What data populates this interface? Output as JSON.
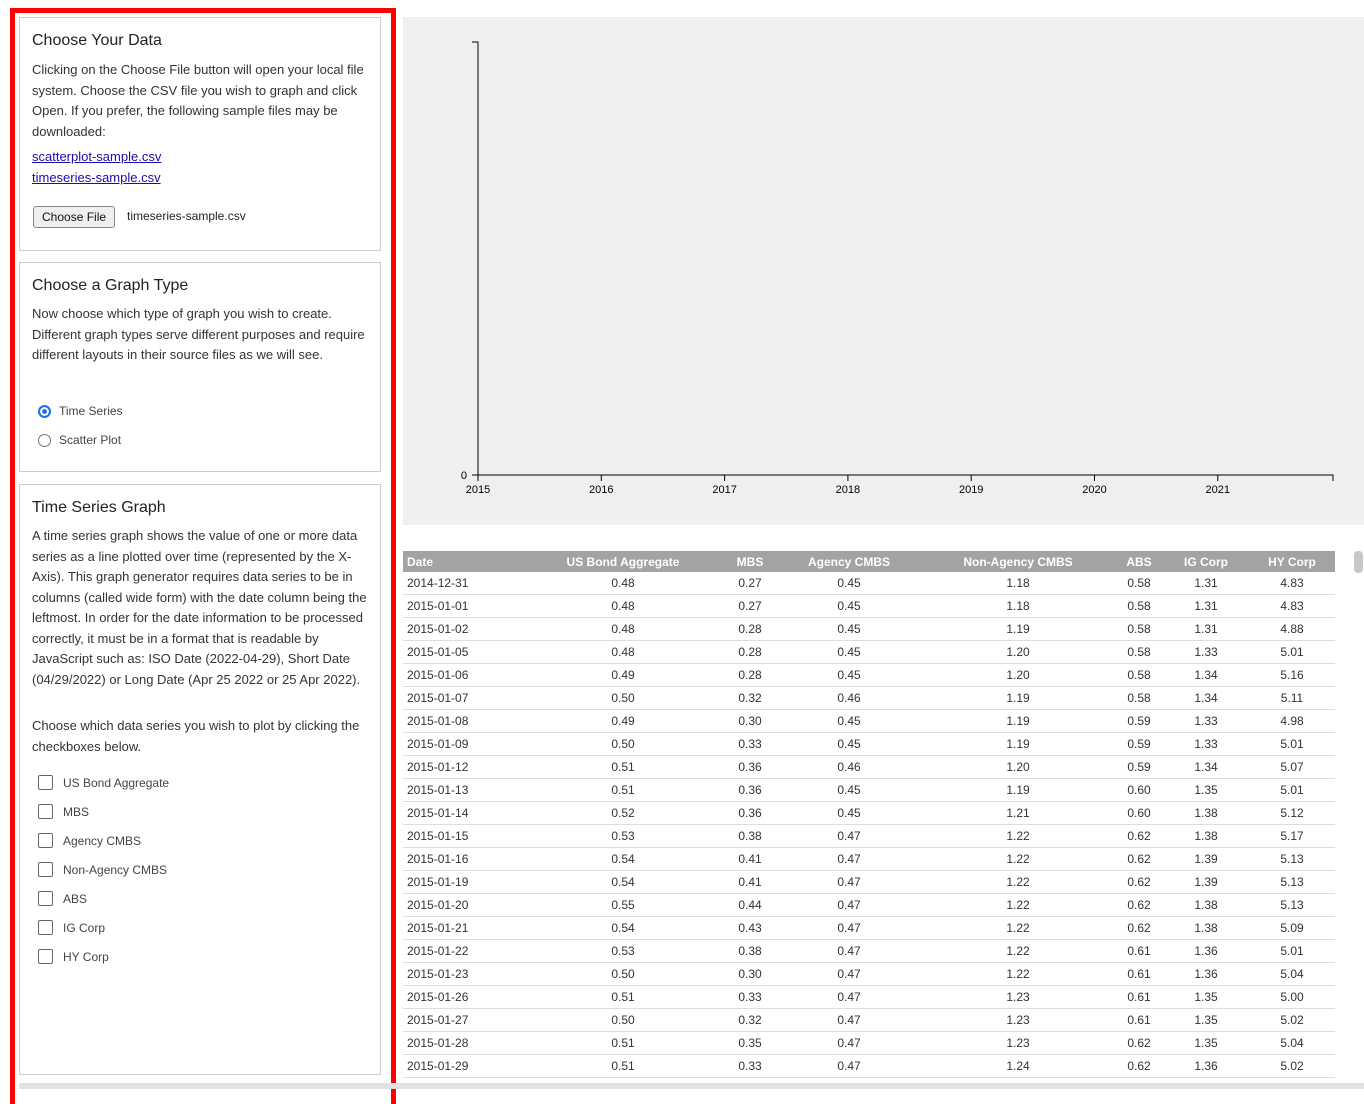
{
  "sidebar": {
    "data_section": {
      "title": "Choose Your Data",
      "text": "Clicking on the Choose File button will open your local file system. Choose the CSV file you wish to graph and click Open. If you prefer, the following sample files may be downloaded:",
      "links": [
        "scatterplot-sample.csv",
        "timeseries-sample.csv"
      ],
      "button": "Choose File",
      "file_name": "timeseries-sample.csv"
    },
    "graph_type": {
      "title": "Choose a Graph Type",
      "text": "Now choose which type of graph you wish to create. Different graph types serve different purposes and require different layouts in their source files as we will see.",
      "options": [
        "Time Series",
        "Scatter Plot"
      ]
    },
    "time_series": {
      "title": "Time Series Graph",
      "text": "A time series graph shows the value of one or more data series as a line plotted over time (represented by the X-Axis). This graph generator requires data series to be in columns (called wide form) with the date column being the leftmost. In order for the date information to be processed correctly, it must be in a format that is readable by JavaScript such as: ISO Date (2022-04-29), Short Date (04/29/2022) or Long Date (Apr 25 2022 or 25 Apr 2022).",
      "text2": "Choose which data series you wish to plot by clicking the checkboxes below.",
      "series": [
        "US Bond Aggregate",
        "MBS",
        "Agency CMBS",
        "Non-Agency CMBS",
        "ABS",
        "IG Corp",
        "HY Corp"
      ]
    }
  },
  "chart": {
    "xticks": [
      2015,
      2016,
      2017,
      2018,
      2019,
      2020,
      2021
    ],
    "yticks": [
      0
    ]
  },
  "table": {
    "columns": [
      "Date",
      "US Bond Aggregate",
      "MBS",
      "Agency CMBS",
      "Non-Agency CMBS",
      "ABS",
      "IG Corp",
      "HY Corp"
    ],
    "rows": [
      [
        "2014-12-31",
        "0.48",
        "0.27",
        "0.45",
        "1.18",
        "0.58",
        "1.31",
        "4.83"
      ],
      [
        "2015-01-01",
        "0.48",
        "0.27",
        "0.45",
        "1.18",
        "0.58",
        "1.31",
        "4.83"
      ],
      [
        "2015-01-02",
        "0.48",
        "0.28",
        "0.45",
        "1.19",
        "0.58",
        "1.31",
        "4.88"
      ],
      [
        "2015-01-05",
        "0.48",
        "0.28",
        "0.45",
        "1.20",
        "0.58",
        "1.33",
        "5.01"
      ],
      [
        "2015-01-06",
        "0.49",
        "0.28",
        "0.45",
        "1.20",
        "0.58",
        "1.34",
        "5.16"
      ],
      [
        "2015-01-07",
        "0.50",
        "0.32",
        "0.46",
        "1.19",
        "0.58",
        "1.34",
        "5.11"
      ],
      [
        "2015-01-08",
        "0.49",
        "0.30",
        "0.45",
        "1.19",
        "0.59",
        "1.33",
        "4.98"
      ],
      [
        "2015-01-09",
        "0.50",
        "0.33",
        "0.45",
        "1.19",
        "0.59",
        "1.33",
        "5.01"
      ],
      [
        "2015-01-12",
        "0.51",
        "0.36",
        "0.46",
        "1.20",
        "0.59",
        "1.34",
        "5.07"
      ],
      [
        "2015-01-13",
        "0.51",
        "0.36",
        "0.45",
        "1.19",
        "0.60",
        "1.35",
        "5.01"
      ],
      [
        "2015-01-14",
        "0.52",
        "0.36",
        "0.45",
        "1.21",
        "0.60",
        "1.38",
        "5.12"
      ],
      [
        "2015-01-15",
        "0.53",
        "0.38",
        "0.47",
        "1.22",
        "0.62",
        "1.38",
        "5.17"
      ],
      [
        "2015-01-16",
        "0.54",
        "0.41",
        "0.47",
        "1.22",
        "0.62",
        "1.39",
        "5.13"
      ],
      [
        "2015-01-19",
        "0.54",
        "0.41",
        "0.47",
        "1.22",
        "0.62",
        "1.39",
        "5.13"
      ],
      [
        "2015-01-20",
        "0.55",
        "0.44",
        "0.47",
        "1.22",
        "0.62",
        "1.38",
        "5.13"
      ],
      [
        "2015-01-21",
        "0.54",
        "0.43",
        "0.47",
        "1.22",
        "0.62",
        "1.38",
        "5.09"
      ],
      [
        "2015-01-22",
        "0.53",
        "0.38",
        "0.47",
        "1.22",
        "0.61",
        "1.36",
        "5.01"
      ],
      [
        "2015-01-23",
        "0.50",
        "0.30",
        "0.47",
        "1.22",
        "0.61",
        "1.36",
        "5.04"
      ],
      [
        "2015-01-26",
        "0.51",
        "0.33",
        "0.47",
        "1.23",
        "0.61",
        "1.35",
        "5.00"
      ],
      [
        "2015-01-27",
        "0.50",
        "0.32",
        "0.47",
        "1.23",
        "0.61",
        "1.35",
        "5.02"
      ],
      [
        "2015-01-28",
        "0.51",
        "0.35",
        "0.47",
        "1.23",
        "0.62",
        "1.35",
        "5.04"
      ],
      [
        "2015-01-29",
        "0.51",
        "0.33",
        "0.47",
        "1.24",
        "0.62",
        "1.36",
        "5.02"
      ]
    ]
  }
}
